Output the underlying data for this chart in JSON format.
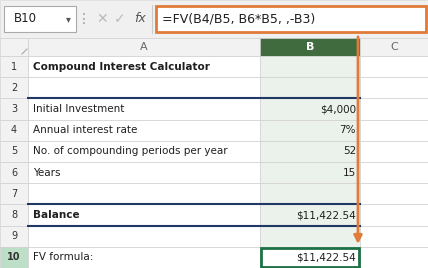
{
  "formula_bar_cell": "B10",
  "formula_bar_formula": "=FV(B4/B5, B6*B5, ,-B3)",
  "rows": [
    {
      "num": 1,
      "a": "Compound Interest Calculator",
      "b": "",
      "bold_a": true,
      "blue_a": false
    },
    {
      "num": 2,
      "a": "",
      "b": ""
    },
    {
      "num": 3,
      "a": "Initial Investment",
      "b": "$4,000",
      "blue_border_top": true
    },
    {
      "num": 4,
      "a": "Annual interest rate",
      "b": "7%"
    },
    {
      "num": 5,
      "a": "No. of compounding periods per year",
      "b": "52"
    },
    {
      "num": 6,
      "a": "Years",
      "b": "15"
    },
    {
      "num": 7,
      "a": "",
      "b": ""
    },
    {
      "num": 8,
      "a": "Balance",
      "b": "$11,422.54",
      "bold_a": true,
      "blue_border_top": true
    },
    {
      "num": 9,
      "a": "",
      "b": ""
    },
    {
      "num": 10,
      "a": "FV formula:",
      "b": "$11,422.54",
      "selected": true
    }
  ],
  "formula_bar_border": "#E07B39",
  "formula_bar_bg": "#F8F8F8",
  "header_bg": "#F2F2F2",
  "selected_col_header_bg": "#3F6B3F",
  "selected_col_header_fg": "#FFFFFF",
  "grid_color": "#D0D0D0",
  "blue_border_color": "#1F3864",
  "selected_cell_border": "#1E7145",
  "arrow_color": "#E07B39",
  "text_dark": "#1F1F1F",
  "text_blue_label": "#1F3864",
  "row_num_selected_bg": "#C6EFCE"
}
